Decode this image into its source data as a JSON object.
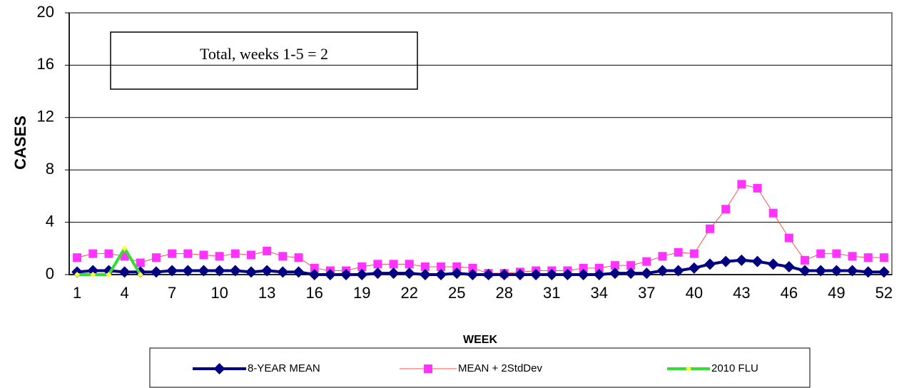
{
  "chart_data": {
    "type": "line",
    "annotation": "Total, weeks 1-5 = 2",
    "x_label": "WEEK",
    "y_label": "CASES",
    "categories": [
      "1",
      null,
      null,
      "4",
      null,
      null,
      "7",
      null,
      null,
      "10",
      null,
      null,
      "13",
      null,
      null,
      "16",
      null,
      null,
      "19",
      null,
      null,
      "22",
      null,
      null,
      "25",
      null,
      null,
      "28",
      null,
      null,
      "31",
      null,
      null,
      "34",
      null,
      null,
      "37",
      null,
      null,
      "40",
      null,
      null,
      "43",
      null,
      null,
      "46",
      null,
      null,
      "49",
      null,
      null,
      "52"
    ],
    "ylim": [
      0,
      20
    ],
    "yticks": [
      0,
      4,
      8,
      12,
      16,
      20
    ],
    "grid": true,
    "series": [
      {
        "name": "8-YEAR MEAN",
        "color": "#000080",
        "marker": "diamond",
        "marker_color": "#000080",
        "values": [
          0.2,
          0.3,
          0.3,
          0.2,
          0.2,
          0.2,
          0.3,
          0.3,
          0.3,
          0.3,
          0.3,
          0.2,
          0.3,
          0.2,
          0.2,
          0,
          0,
          0,
          0,
          0.1,
          0.1,
          0.1,
          0,
          0,
          0.1,
          0,
          0,
          0,
          0,
          0,
          0,
          0,
          0,
          0,
          0.1,
          0.1,
          0.1,
          0.3,
          0.3,
          0.5,
          0.8,
          1.0,
          1.1,
          1.0,
          0.8,
          0.6,
          0.3,
          0.3,
          0.3,
          0.3,
          0.2,
          0.2
        ]
      },
      {
        "name": "MEAN + 2StdDev",
        "color": "#ff4d4d",
        "marker": "square",
        "marker_color": "#ff33ff",
        "values": [
          1.3,
          1.6,
          1.6,
          1.4,
          0.9,
          1.3,
          1.6,
          1.6,
          1.5,
          1.4,
          1.6,
          1.5,
          1.8,
          1.4,
          1.3,
          0.5,
          0.3,
          0.3,
          0.6,
          0.8,
          0.8,
          0.8,
          0.6,
          0.6,
          0.6,
          0.5,
          0.1,
          0.1,
          0.2,
          0.3,
          0.3,
          0.3,
          0.5,
          0.5,
          0.7,
          0.7,
          1.0,
          1.4,
          1.7,
          1.6,
          3.5,
          5.0,
          6.9,
          6.6,
          4.7,
          2.8,
          1.1,
          1.6,
          1.6,
          1.4,
          1.3,
          1.3
        ]
      },
      {
        "name": "2010  FLU",
        "color": "#33dd33",
        "marker": "small-diamond",
        "marker_color": "#ffff33",
        "values": [
          0,
          0,
          0,
          2,
          0,
          null,
          null,
          null,
          null,
          null,
          null,
          null,
          null,
          null,
          null,
          null,
          null,
          null,
          null,
          null,
          null,
          null,
          null,
          null,
          null,
          null,
          null,
          null,
          null,
          null,
          null,
          null,
          null,
          null,
          null,
          null,
          null,
          null,
          null,
          null,
          null,
          null,
          null,
          null,
          null,
          null,
          null,
          null,
          null,
          null,
          null,
          null
        ]
      }
    ]
  }
}
